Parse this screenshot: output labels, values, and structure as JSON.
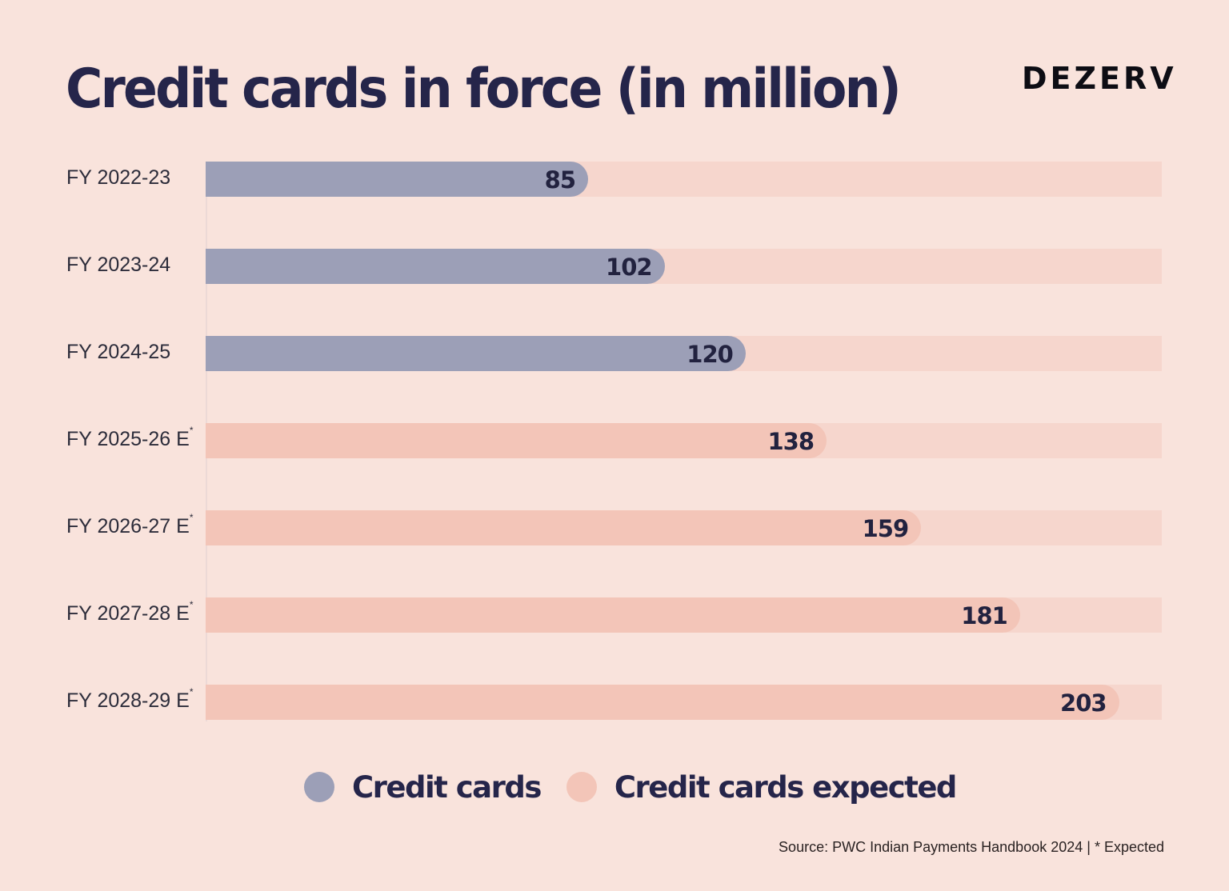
{
  "header": {
    "title": "Credit cards in force (in million)",
    "logo_text": "DEZERV"
  },
  "chart_data": {
    "type": "bar",
    "orientation": "horizontal",
    "title": "Credit cards in force (in million)",
    "xlabel": "",
    "ylabel": "",
    "xlim": [
      0,
      212.5
    ],
    "grid": false,
    "legend_position": "bottom-center",
    "categories": [
      {
        "label": "FY 2022-23",
        "marker": ""
      },
      {
        "label": "FY 2023-24",
        "marker": ""
      },
      {
        "label": "FY 2024-25",
        "marker": ""
      },
      {
        "label": "FY 2025-26 E",
        "marker": "*"
      },
      {
        "label": "FY 2026-27 E",
        "marker": "*"
      },
      {
        "label": "FY 2027-28 E",
        "marker": "*"
      },
      {
        "label": "FY 2028-29 E",
        "marker": "*"
      }
    ],
    "values": [
      85,
      102,
      120,
      138,
      159,
      181,
      203
    ],
    "value_labels": [
      "85",
      "102",
      "120",
      "138",
      "159",
      "181",
      "203"
    ],
    "series_of_point": [
      "actual",
      "actual",
      "actual",
      "expected",
      "expected",
      "expected",
      "expected"
    ],
    "series": [
      {
        "key": "actual",
        "name": "Credit cards",
        "color": "#9c9fb7"
      },
      {
        "key": "expected",
        "name": "Credit cards expected",
        "color": "#f3c5b8"
      }
    ],
    "track_color": "#f6d6cd"
  },
  "footer": {
    "source": "Source: PWC Indian Payments Handbook 2024 | * Expected"
  }
}
